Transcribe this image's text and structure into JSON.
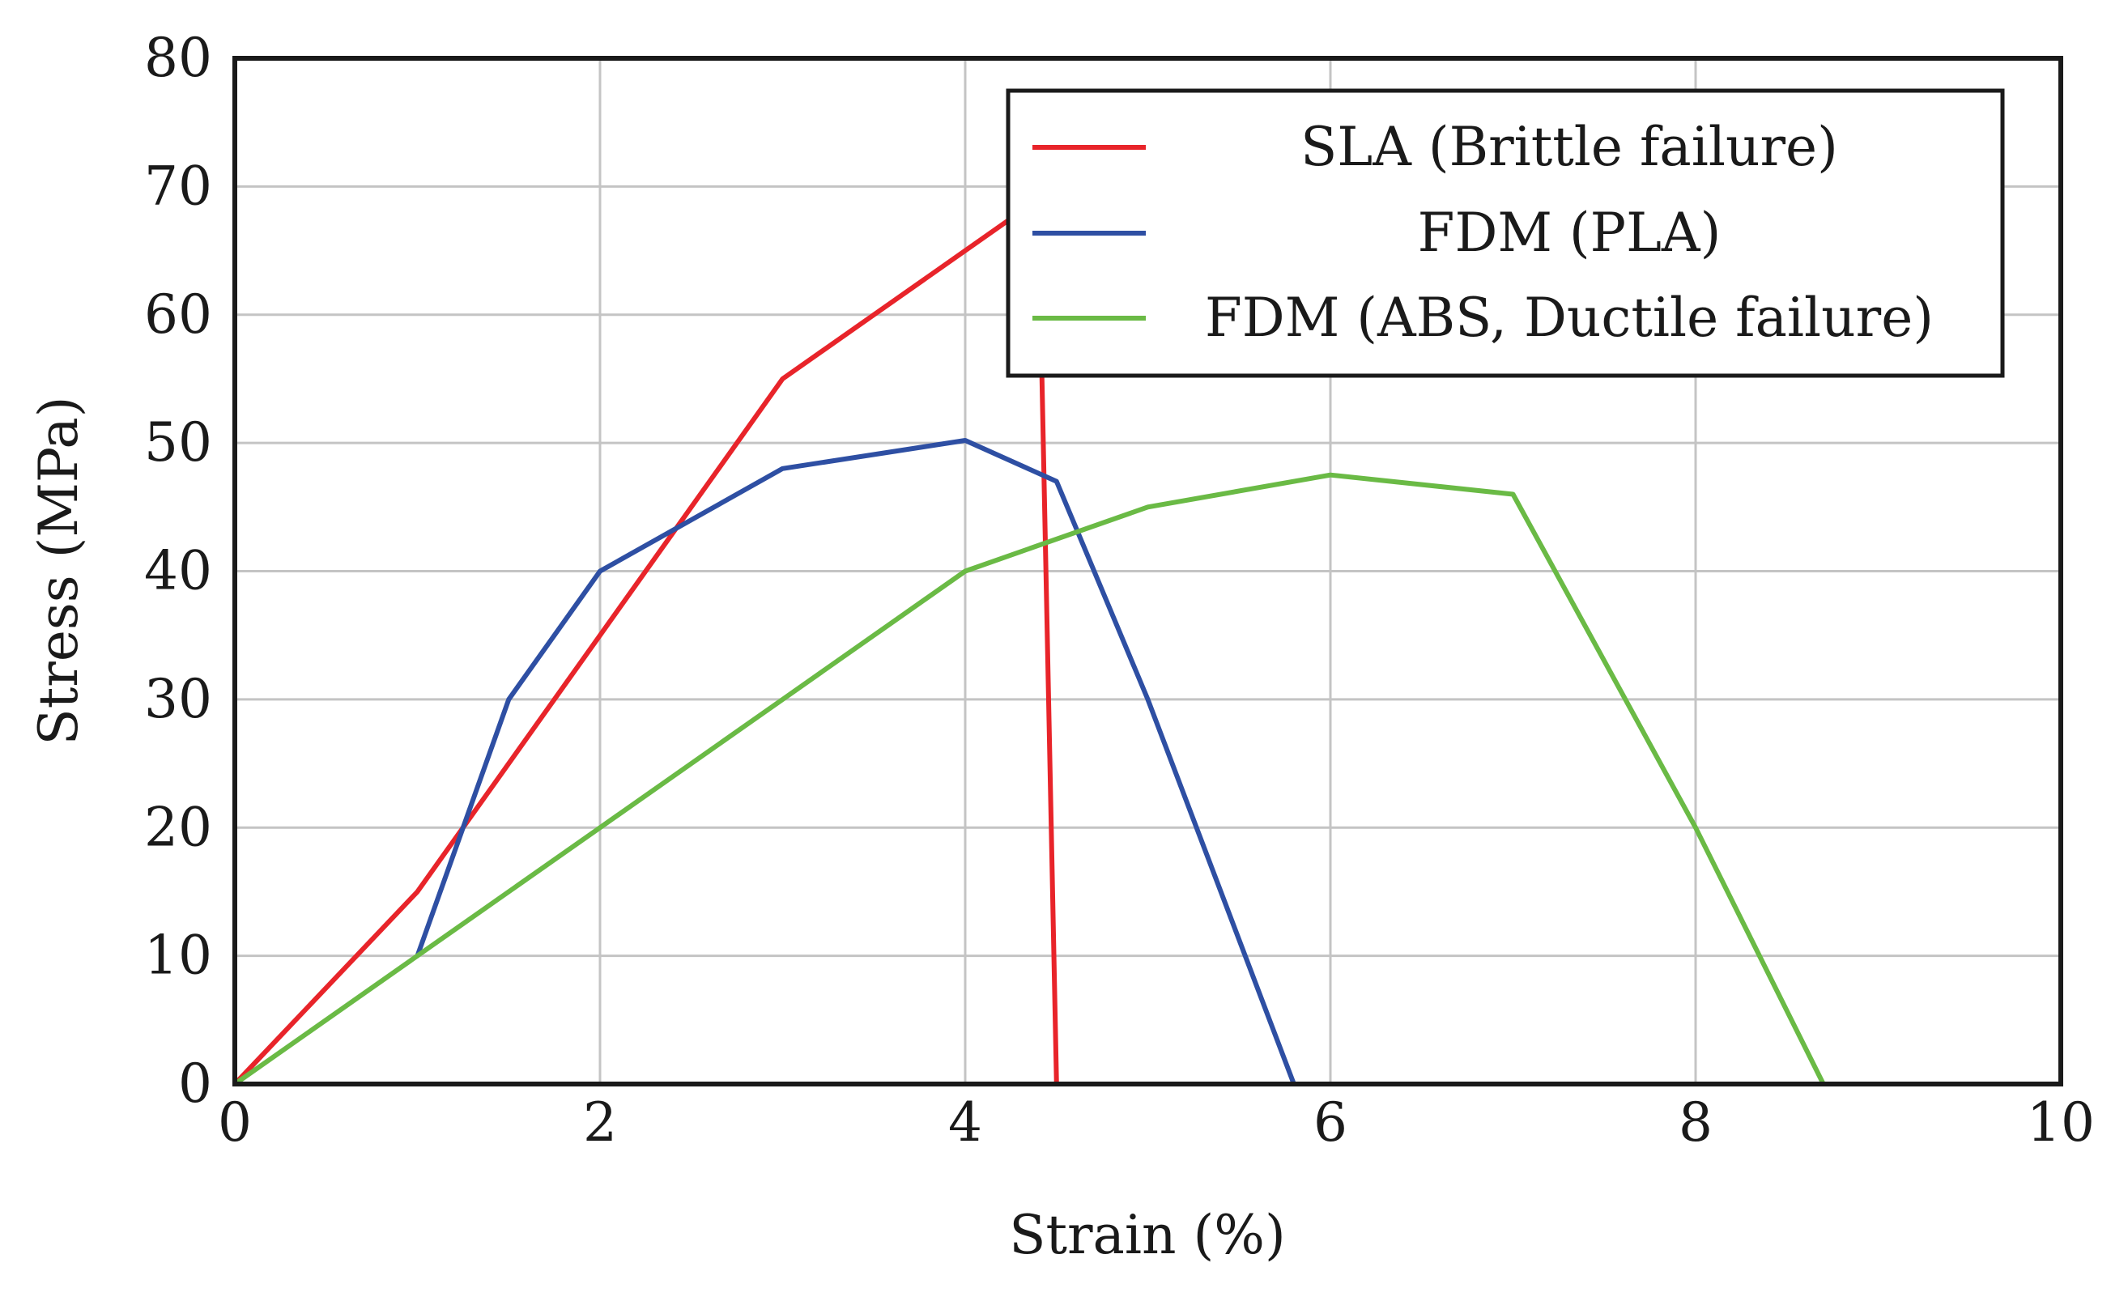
{
  "chart_data": {
    "type": "line",
    "title": "",
    "xlabel": "Strain (%)",
    "ylabel": "Stress (MPa)",
    "xlim": [
      0,
      10
    ],
    "ylim": [
      0,
      80
    ],
    "xticks": [
      "0",
      "2",
      "4",
      "6",
      "8",
      "10"
    ],
    "yticks": [
      "0",
      "10",
      "20",
      "30",
      "40",
      "50",
      "60",
      "70",
      "80"
    ],
    "grid": true,
    "legend_position": "top-right",
    "series": [
      {
        "name": "SLA (Brittle failure)",
        "color": "#e8242a",
        "points": [
          [
            0,
            0
          ],
          [
            1,
            15
          ],
          [
            2,
            35
          ],
          [
            3,
            55
          ],
          [
            4,
            65
          ],
          [
            4.4,
            69
          ],
          [
            4.5,
            0
          ]
        ]
      },
      {
        "name": "FDM (PLA)",
        "color": "#2e4fa3",
        "points": [
          [
            1,
            10
          ],
          [
            1.5,
            30
          ],
          [
            2,
            40
          ],
          [
            3,
            48
          ],
          [
            4,
            50.2
          ],
          [
            4.5,
            47
          ],
          [
            5,
            30
          ],
          [
            5.8,
            0
          ]
        ]
      },
      {
        "name": "FDM (ABS, Ductile failure)",
        "color": "#6aba45",
        "points": [
          [
            0,
            0
          ],
          [
            1,
            10
          ],
          [
            2,
            20
          ],
          [
            3,
            30
          ],
          [
            4,
            40
          ],
          [
            5,
            45
          ],
          [
            6,
            47.5
          ],
          [
            7,
            46
          ],
          [
            8,
            20
          ],
          [
            8.7,
            0
          ]
        ]
      }
    ]
  }
}
